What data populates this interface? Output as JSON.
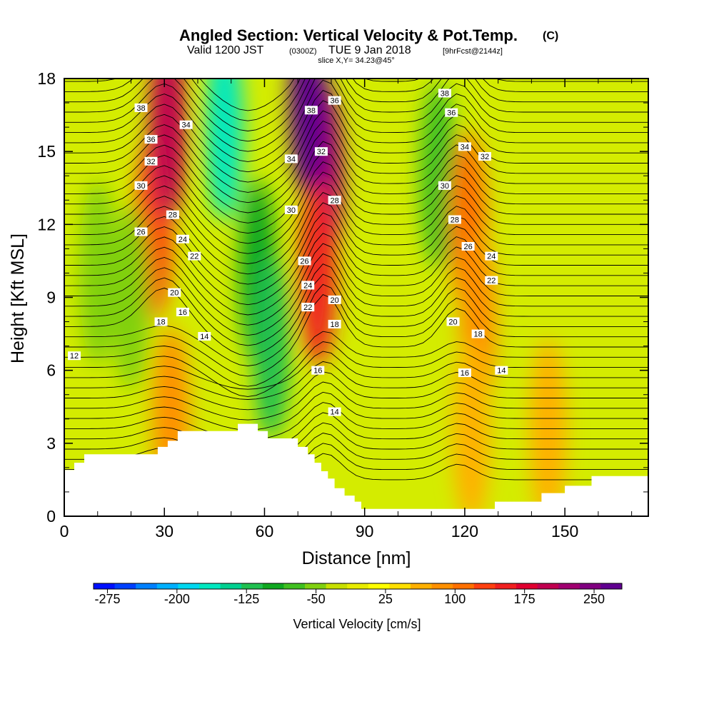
{
  "title": {
    "main": "Angled Section: Vertical Velocity & Pot.Temp.",
    "units": "(C)",
    "valid_prefix": "Valid 1200 JST",
    "utc_time": "(0300Z)",
    "valid_date": "TUE 9 Jan 2018",
    "forecast_info": "[9hrFcst@2144z]",
    "slice_info": "slice X,Y= 34.23@45°"
  },
  "chart_data": {
    "type": "heatmap",
    "xlabel": "Distance [nm]",
    "ylabel": "Height [Kft MSL]",
    "xlim": [
      0,
      175
    ],
    "ylim": [
      0,
      18
    ],
    "x_ticks": [
      "0",
      "30",
      "60",
      "90",
      "120",
      "150"
    ],
    "y_ticks": [
      "0",
      "3",
      "6",
      "9",
      "12",
      "15",
      "18"
    ],
    "colorbar": {
      "title": "Vertical Velocity [cm/s]",
      "labels": [
        "-275",
        "-200",
        "-125",
        "-50",
        "25",
        "100",
        "175",
        "250"
      ],
      "colors": [
        "#0010ff",
        "#0040ff",
        "#0080ff",
        "#00b0ff",
        "#00d8f0",
        "#00e8c0",
        "#00d090",
        "#20c050",
        "#10a820",
        "#40c020",
        "#80d010",
        "#c8e000",
        "#e8ec00",
        "#ffff00",
        "#ffe000",
        "#ffb000",
        "#ff9000",
        "#ff7000",
        "#ff4010",
        "#f02020",
        "#e00030",
        "#c00050",
        "#a00070",
        "#800080",
        "#600090"
      ]
    },
    "velocity_features": [
      {
        "x": 27,
        "z": 12,
        "value": 140
      },
      {
        "x": 31,
        "z": 16,
        "value": 200
      },
      {
        "x": 48,
        "z": 16,
        "value": -170
      },
      {
        "x": 58,
        "z": 10,
        "value": -90
      },
      {
        "x": 62,
        "z": 7,
        "value": -130
      },
      {
        "x": 78,
        "z": 14,
        "value": 230
      },
      {
        "x": 73,
        "z": 17,
        "value": 270
      },
      {
        "x": 76,
        "z": 10,
        "value": 150
      },
      {
        "x": 112,
        "z": 14,
        "value": -80
      },
      {
        "x": 121,
        "z": 12,
        "value": 120
      },
      {
        "x": 124,
        "z": 8,
        "value": 90
      },
      {
        "x": 32,
        "z": 4,
        "value": 80
      },
      {
        "x": 122,
        "z": 3.5,
        "value": 70
      },
      {
        "x": 145,
        "z": 3.5,
        "value": 60
      },
      {
        "x": 10,
        "z": 10,
        "value": -40
      },
      {
        "x": 20,
        "z": 9,
        "value": -60
      }
    ],
    "pot_temp_labels": [
      {
        "text": "38",
        "x": 23,
        "z": 16.8
      },
      {
        "text": "36",
        "x": 26,
        "z": 15.5
      },
      {
        "text": "34",
        "x": 36.5,
        "z": 16.1
      },
      {
        "text": "32",
        "x": 26,
        "z": 14.6
      },
      {
        "text": "30",
        "x": 23,
        "z": 13.6
      },
      {
        "text": "28",
        "x": 32.5,
        "z": 12.4
      },
      {
        "text": "26",
        "x": 23,
        "z": 11.7
      },
      {
        "text": "24",
        "x": 35.5,
        "z": 11.4
      },
      {
        "text": "22",
        "x": 39,
        "z": 10.7
      },
      {
        "text": "20",
        "x": 33,
        "z": 9.2
      },
      {
        "text": "18",
        "x": 29,
        "z": 8.0
      },
      {
        "text": "16",
        "x": 35.5,
        "z": 8.4
      },
      {
        "text": "14",
        "x": 42,
        "z": 7.4
      },
      {
        "text": "12",
        "x": 3,
        "z": 6.6
      },
      {
        "text": "38",
        "x": 74,
        "z": 16.7
      },
      {
        "text": "36",
        "x": 81,
        "z": 17.1
      },
      {
        "text": "34",
        "x": 68,
        "z": 14.7
      },
      {
        "text": "32",
        "x": 77,
        "z": 15.0
      },
      {
        "text": "30",
        "x": 68,
        "z": 12.6
      },
      {
        "text": "28",
        "x": 81,
        "z": 13.0
      },
      {
        "text": "26",
        "x": 72,
        "z": 10.5
      },
      {
        "text": "24",
        "x": 73,
        "z": 9.5
      },
      {
        "text": "22",
        "x": 73,
        "z": 8.6
      },
      {
        "text": "20",
        "x": 81,
        "z": 8.9
      },
      {
        "text": "18",
        "x": 81,
        "z": 7.9
      },
      {
        "text": "16",
        "x": 76,
        "z": 6.0
      },
      {
        "text": "14",
        "x": 81,
        "z": 4.3
      },
      {
        "text": "38",
        "x": 114,
        "z": 17.4
      },
      {
        "text": "36",
        "x": 116,
        "z": 16.6
      },
      {
        "text": "34",
        "x": 120,
        "z": 15.2
      },
      {
        "text": "32",
        "x": 126,
        "z": 14.8
      },
      {
        "text": "30",
        "x": 114,
        "z": 13.6
      },
      {
        "text": "28",
        "x": 117,
        "z": 12.2
      },
      {
        "text": "26",
        "x": 121,
        "z": 11.1
      },
      {
        "text": "24",
        "x": 128,
        "z": 10.7
      },
      {
        "text": "22",
        "x": 128,
        "z": 9.7
      },
      {
        "text": "20",
        "x": 116.5,
        "z": 8.0
      },
      {
        "text": "18",
        "x": 124,
        "z": 7.5
      },
      {
        "text": "16",
        "x": 120,
        "z": 5.9
      },
      {
        "text": "14",
        "x": 131,
        "z": 6.0
      }
    ]
  }
}
